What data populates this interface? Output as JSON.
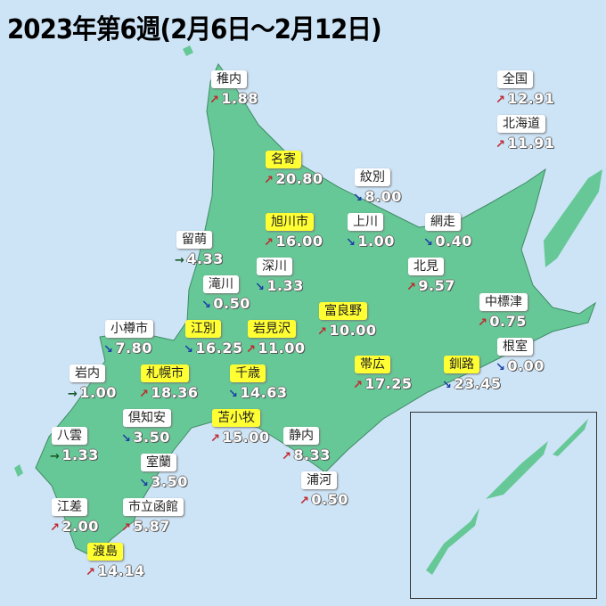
{
  "title": "2023年第6週(2月6日～2月12日)",
  "colors": {
    "sea": "#cde4f7",
    "land": "#66c896",
    "highlight": "#ffff33",
    "up": "#c0282d",
    "down": "#1c3ea8",
    "flat": "#1a5a2a"
  },
  "trend_symbols": {
    "up": "↗",
    "down": "↘",
    "flat": "→"
  },
  "stations": [
    {
      "name": "稚内",
      "value": "1.88",
      "trend": "up",
      "arrow": "↗",
      "highlight": false
    },
    {
      "name": "名寄",
      "value": "20.80",
      "trend": "up",
      "arrow": "↗",
      "highlight": true
    },
    {
      "name": "紋別",
      "value": "8.00",
      "trend": "down",
      "arrow": "↘",
      "highlight": false
    },
    {
      "name": "旭川市",
      "value": "16.00",
      "trend": "up",
      "arrow": "↗",
      "highlight": true
    },
    {
      "name": "上川",
      "value": "1.00",
      "trend": "down",
      "arrow": "↘",
      "highlight": false
    },
    {
      "name": "網走",
      "value": "0.40",
      "trend": "down",
      "arrow": "↘",
      "highlight": false
    },
    {
      "name": "留萌",
      "value": "4.33",
      "trend": "flat",
      "arrow": "→",
      "highlight": false
    },
    {
      "name": "深川",
      "value": "1.33",
      "trend": "down",
      "arrow": "↘",
      "highlight": false
    },
    {
      "name": "北見",
      "value": "9.57",
      "trend": "up",
      "arrow": "↗",
      "highlight": false
    },
    {
      "name": "滝川",
      "value": "0.50",
      "trend": "down",
      "arrow": "↘",
      "highlight": false
    },
    {
      "name": "中標津",
      "value": "0.75",
      "trend": "up",
      "arrow": "↗",
      "highlight": false
    },
    {
      "name": "富良野",
      "value": "10.00",
      "trend": "up",
      "arrow": "↗",
      "highlight": true
    },
    {
      "name": "小樽市",
      "value": "7.80",
      "trend": "down",
      "arrow": "↘",
      "highlight": false
    },
    {
      "name": "江別",
      "value": "16.25",
      "trend": "down",
      "arrow": "↘",
      "highlight": true
    },
    {
      "name": "岩見沢",
      "value": "11.00",
      "trend": "up",
      "arrow": "↗",
      "highlight": true
    },
    {
      "name": "根室",
      "value": "0.00",
      "trend": "down",
      "arrow": "↘",
      "highlight": false
    },
    {
      "name": "帯広",
      "value": "17.25",
      "trend": "up",
      "arrow": "↗",
      "highlight": true
    },
    {
      "name": "釧路",
      "value": "23.45",
      "trend": "down",
      "arrow": "↘",
      "highlight": true
    },
    {
      "name": "岩内",
      "value": "1.00",
      "trend": "flat",
      "arrow": "→",
      "highlight": false
    },
    {
      "name": "札幌市",
      "value": "18.36",
      "trend": "up",
      "arrow": "↗",
      "highlight": true
    },
    {
      "name": "千歳",
      "value": "14.63",
      "trend": "down",
      "arrow": "↘",
      "highlight": true
    },
    {
      "name": "倶知安",
      "value": "3.50",
      "trend": "down",
      "arrow": "↘",
      "highlight": false
    },
    {
      "name": "苫小牧",
      "value": "15.00",
      "trend": "up",
      "arrow": "↗",
      "highlight": true
    },
    {
      "name": "八雲",
      "value": "1.33",
      "trend": "flat",
      "arrow": "→",
      "highlight": false
    },
    {
      "name": "静内",
      "value": "8.33",
      "trend": "up",
      "arrow": "↗",
      "highlight": false
    },
    {
      "name": "室蘭",
      "value": "3.50",
      "trend": "down",
      "arrow": "↘",
      "highlight": false
    },
    {
      "name": "浦河",
      "value": "0.50",
      "trend": "up",
      "arrow": "↗",
      "highlight": false
    },
    {
      "name": "江差",
      "value": "2.00",
      "trend": "up",
      "arrow": "↗",
      "highlight": false
    },
    {
      "name": "市立函館",
      "value": "5.87",
      "trend": "up",
      "arrow": "↗",
      "highlight": false
    },
    {
      "name": "渡島",
      "value": "14.14",
      "trend": "up",
      "arrow": "↗",
      "highlight": true
    },
    {
      "name": "全国",
      "value": "12.91",
      "trend": "up",
      "arrow": "↗",
      "highlight": false
    },
    {
      "name": "北海道",
      "value": "11.91",
      "trend": "up",
      "arrow": "↗",
      "highlight": false
    }
  ]
}
